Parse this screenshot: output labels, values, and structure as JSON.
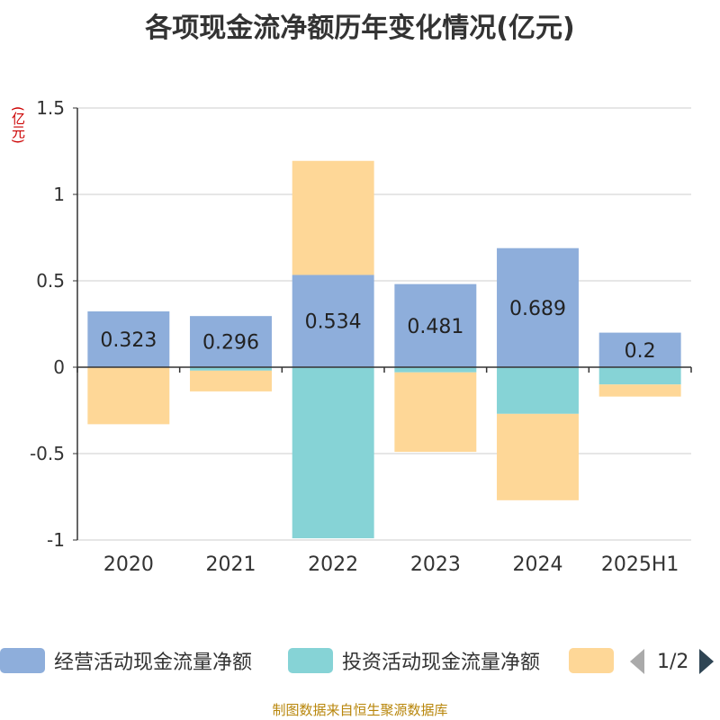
{
  "title": "各项现金流净额历年变化情况(亿元)",
  "unit_label": "(亿元)",
  "source": "制图数据来自恒生聚源数据库",
  "legend": {
    "items": [
      {
        "label": "经营活动现金流量净额",
        "color": "#8eaedb"
      },
      {
        "label": "投资活动现金流量净额",
        "color": "#86d3d6"
      },
      {
        "label": "",
        "color": "#fed797"
      }
    ],
    "page": "1/2"
  },
  "chart_data": {
    "type": "bar",
    "stacked": true,
    "categories": [
      "2020",
      "2021",
      "2022",
      "2023",
      "2024",
      "2025H1"
    ],
    "series": [
      {
        "name": "经营活动现金流量净额",
        "color": "#8eaedb",
        "values": [
          0.323,
          0.296,
          0.534,
          0.481,
          0.689,
          0.2
        ],
        "labels": [
          "0.323",
          "0.296",
          "0.534",
          "0.481",
          "0.689",
          "0.2"
        ]
      },
      {
        "name": "投资活动现金流量净额",
        "color": "#86d3d6",
        "values": [
          0,
          -0.02,
          -0.99,
          -0.03,
          -0.27,
          -0.1
        ]
      },
      {
        "name": "",
        "color": "#fed797",
        "values": [
          -0.33,
          -0.12,
          0.66,
          -0.46,
          -0.5,
          -0.07
        ]
      }
    ],
    "ylim": [
      -1,
      1.5
    ],
    "yticks": [
      1.5,
      1,
      0.5,
      0,
      -0.5,
      -1
    ],
    "ytick_labels": [
      "1.5",
      "1",
      "0.5",
      "0",
      "-0.5",
      "-1"
    ],
    "grid": true
  }
}
